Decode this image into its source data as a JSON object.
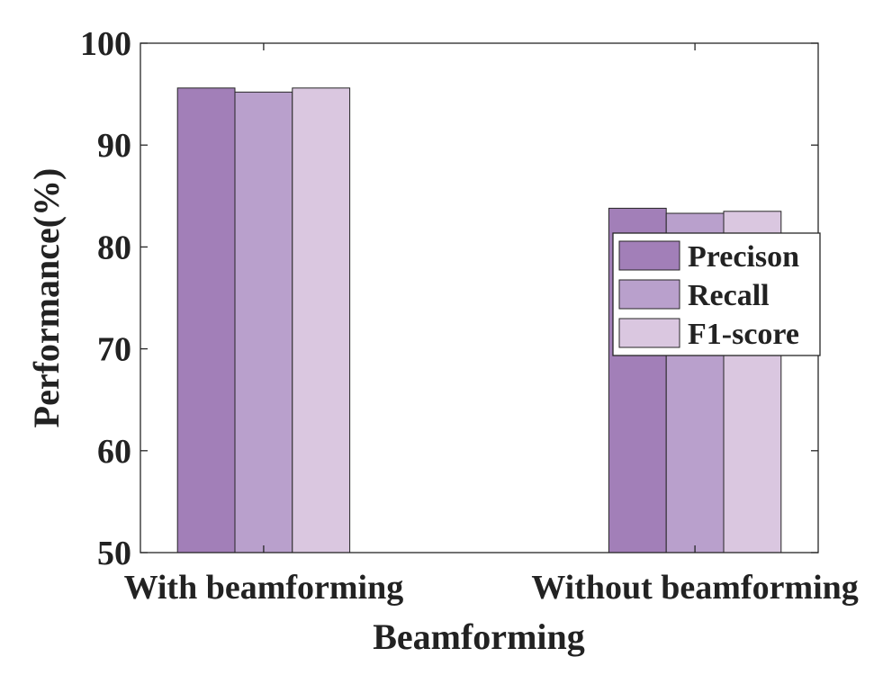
{
  "chart_data": {
    "type": "bar",
    "title": "",
    "xlabel": "Beamforming",
    "ylabel": "Performance(%)",
    "ylim": [
      50,
      100
    ],
    "yticks": [
      50,
      60,
      70,
      80,
      90,
      100
    ],
    "categories": [
      "With beamforming",
      "Without beamforming"
    ],
    "series": [
      {
        "name": "Precison",
        "values": [
          95.6,
          83.8
        ],
        "color": "#a27fb8"
      },
      {
        "name": "Recall",
        "values": [
          95.2,
          83.3
        ],
        "color": "#b9a0cc"
      },
      {
        "name": "F1-score",
        "values": [
          95.6,
          83.5
        ],
        "color": "#dac7e0"
      }
    ],
    "legend_position": "right",
    "grid": false
  }
}
